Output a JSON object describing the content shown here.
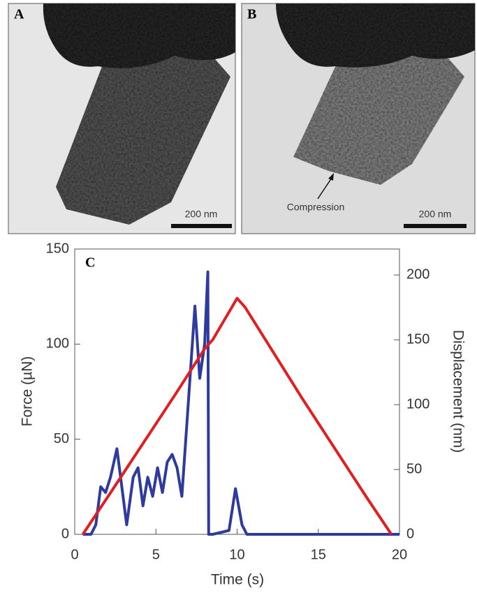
{
  "panels": [
    {
      "label": "A",
      "scale_bar": "200 nm"
    },
    {
      "label": "B",
      "scale_bar": "200 nm",
      "annotation": "Compression"
    }
  ],
  "chart_data": {
    "type": "line",
    "panel_label": "C",
    "xlabel": "Time (s)",
    "ylabel": "Force (µN)",
    "y2label": "Displacement (nm)",
    "xlim": [
      0,
      20
    ],
    "xticks": [
      0,
      5,
      10,
      15,
      20
    ],
    "ylim": [
      0,
      150
    ],
    "yticks": [
      0,
      50,
      100,
      150
    ],
    "y2lim": [
      0,
      220
    ],
    "y2ticks": [
      0,
      50,
      100,
      150,
      200
    ],
    "series": [
      {
        "color": "#2e3a9c",
        "x": [
          0.5,
          1.0,
          1.3,
          1.6,
          1.9,
          2.2,
          2.6,
          2.9,
          3.2,
          3.6,
          3.9,
          4.2,
          4.5,
          4.8,
          5.1,
          5.4,
          5.7,
          6.0,
          6.3,
          6.6,
          7.0,
          7.4,
          7.7,
          8.0,
          8.2,
          8.25,
          8.5,
          9.5,
          9.9,
          10.3,
          10.6,
          15,
          20
        ],
        "values": [
          0,
          0,
          5,
          25,
          22,
          30,
          45,
          25,
          5,
          30,
          35,
          15,
          30,
          20,
          35,
          22,
          38,
          42,
          35,
          20,
          70,
          120,
          82,
          100,
          138,
          0,
          0,
          2,
          24,
          5,
          0,
          0,
          0
        ]
      },
      {
        "color": "#e02020",
        "axis": "y2",
        "x": [
          0.5,
          2.2,
          6.2,
          8,
          8.5,
          10,
          10.5,
          14,
          18,
          19.5
        ],
        "values": [
          0,
          32,
          108,
          143,
          150,
          182,
          175,
          105,
          28,
          0
        ]
      }
    ]
  }
}
